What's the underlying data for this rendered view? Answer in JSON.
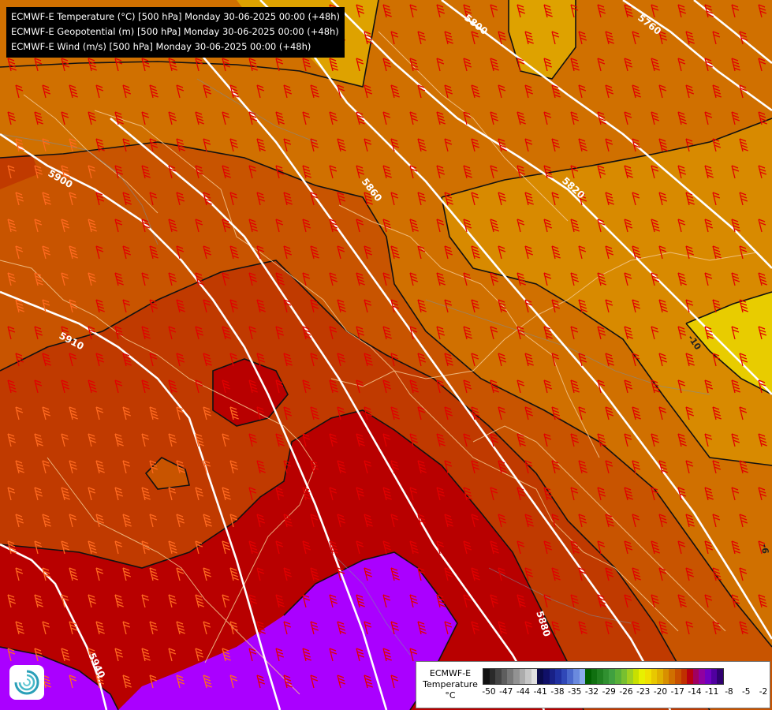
{
  "titles": [
    "ECMWF-E Temperature (°C) [500 hPa] Monday 30-06-2025 00:00 (+48h)",
    "ECMWF-E Geopotential (m) [500 hPa] Monday 30-06-2025 00:00 (+48h)",
    "ECMWF-E Wind (m/s) [500 hPa] Monday 30-06-2025 00:00 (+48h)"
  ],
  "legend": {
    "title_line1": "ECMWF-E",
    "title_line2": "Temperature",
    "unit": "°C",
    "ticks": [
      "-50",
      "-47",
      "-44",
      "-41",
      "-38",
      "-35",
      "-32",
      "-29",
      "-26",
      "-23",
      "-20",
      "-17",
      "-14",
      "-11",
      "-8",
      "-5",
      "-2"
    ],
    "colors": [
      "#111111",
      "#2a2a2a",
      "#444444",
      "#5e5e5e",
      "#787878",
      "#929292",
      "#acacac",
      "#c6c6c6",
      "#e0e0e0",
      "#0a0a4a",
      "#101068",
      "#182086",
      "#2030a0",
      "#3048b8",
      "#4a68cc",
      "#6a8ade",
      "#8cacee",
      "#006000",
      "#107010",
      "#208020",
      "#309030",
      "#40a040",
      "#58b038",
      "#78c030",
      "#a0d020",
      "#c8e000",
      "#e8f000",
      "#f0e000",
      "#e8c800",
      "#e0b000",
      "#d89000",
      "#d07000",
      "#c85000",
      "#c03000",
      "#b80010",
      "#a00060",
      "#9000a0",
      "#7000c0",
      "#5000a0",
      "#300070"
    ]
  },
  "isolines": [
    {
      "label": "5760"
    },
    {
      "label": "5800"
    },
    {
      "label": "5820"
    },
    {
      "label": "5860"
    },
    {
      "label": "5880"
    },
    {
      "label": "5900"
    },
    {
      "label": "5910"
    },
    {
      "label": "5940"
    }
  ],
  "contour_labels": [
    "-10",
    "-6"
  ],
  "colors": {
    "t_minus13": "#e8c800",
    "t_minus12": "#e0ac00",
    "t_minus11": "#d88a00",
    "t_minus10": "#d07000",
    "t_minus9": "#c85400",
    "t_minus8": "#c03a00",
    "t_minus7": "#b80000",
    "t_minus5": "#aa00ff",
    "barb": "#e00000",
    "barb_warm": "#ff6a20",
    "isoline": "#ffffff"
  },
  "icons": {
    "logo": "ecmwf-swirl-logo"
  }
}
